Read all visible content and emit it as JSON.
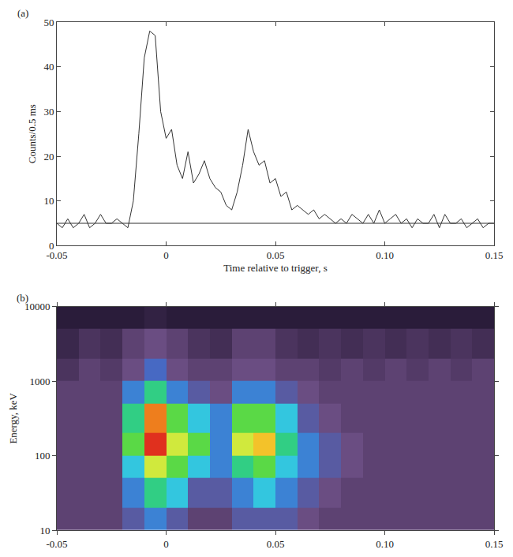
{
  "chart_data": [
    {
      "type": "line",
      "panel_label": "(a)",
      "x_label": "Time relative to trigger, s",
      "y_label": "Counts/0.5 ms",
      "xlim": [
        -0.05,
        0.15
      ],
      "ylim": [
        0,
        50
      ],
      "xticks": [
        -0.05,
        0,
        0.05,
        {
          "value": 0.1,
          "label": "0.10"
        },
        0.15
      ],
      "yticks": [
        0,
        10,
        20,
        30,
        40,
        50
      ],
      "series": [
        {
          "color": "#333333",
          "x": [
            -0.05,
            -0.0475,
            -0.045,
            -0.0425,
            -0.04,
            -0.0375,
            -0.035,
            -0.0325,
            -0.03,
            -0.0275,
            -0.025,
            -0.0225,
            -0.02,
            -0.0175,
            -0.015,
            -0.0125,
            -0.01,
            -0.0075,
            -0.005,
            -0.0025,
            0,
            0.0025,
            0.005,
            0.0075,
            0.01,
            0.0125,
            0.015,
            0.0175,
            0.02,
            0.0225,
            0.025,
            0.0275,
            0.03,
            0.0325,
            0.035,
            0.0375,
            0.04,
            0.0425,
            0.045,
            0.0475,
            0.05,
            0.0525,
            0.055,
            0.0575,
            0.06,
            0.0625,
            0.065,
            0.0675,
            0.07,
            0.0725,
            0.075,
            0.0775,
            0.08,
            0.0825,
            0.085,
            0.0875,
            0.09,
            0.0925,
            0.095,
            0.0975,
            0.1,
            0.1025,
            0.105,
            0.1075,
            0.11,
            0.1125,
            0.115,
            0.1175,
            0.12,
            0.1225,
            0.125,
            0.1275,
            0.13,
            0.1325,
            0.135,
            0.1375,
            0.14,
            0.1425,
            0.145,
            0.1475,
            0.15
          ],
          "values": [
            5,
            4,
            6,
            4,
            5,
            7,
            4,
            5,
            7,
            5,
            5,
            6,
            5,
            4,
            10,
            25,
            42,
            48,
            47,
            30,
            24,
            26,
            18,
            15,
            21,
            14,
            16,
            19,
            15,
            13,
            12,
            9,
            8,
            12,
            18,
            26,
            21,
            18,
            19,
            14,
            15,
            11,
            12,
            8,
            9,
            8,
            7,
            8,
            6,
            7,
            6,
            5,
            6,
            5,
            7,
            6,
            5,
            7,
            5,
            8,
            5,
            6,
            7,
            5,
            6,
            4,
            6,
            5,
            5,
            7,
            4,
            7,
            5,
            5,
            6,
            4,
            5,
            6,
            4,
            5,
            5
          ]
        },
        {
          "color": "#333333",
          "x": [
            -0.05,
            0.15
          ],
          "values": [
            5,
            5
          ]
        }
      ]
    },
    {
      "type": "heatmap",
      "panel_label": "(b)",
      "y_label": "Energy, keV",
      "log": "y",
      "xlim": [
        -0.05,
        0.15
      ],
      "ylim": [
        10,
        10000
      ],
      "xticks": [
        -0.05,
        0,
        0.05,
        {
          "value": 0.1,
          "label": "0.10"
        },
        0.15
      ],
      "yticks": [
        10,
        100,
        1000,
        10000
      ],
      "x_edges": [
        -0.05,
        -0.04,
        -0.03,
        -0.02,
        -0.01,
        0,
        0.01,
        0.02,
        0.03,
        0.04,
        0.05,
        0.06,
        0.07,
        0.08,
        0.09,
        0.1,
        0.11,
        0.12,
        0.13,
        0.14,
        0.15
      ],
      "y_edges": [
        10,
        20,
        50,
        100,
        200,
        500,
        1000,
        2000,
        5000,
        10000
      ],
      "z": [
        [
          1,
          1,
          1,
          2,
          3,
          2,
          1,
          1,
          2,
          2,
          2,
          1.5,
          1,
          1,
          1,
          1,
          1,
          1,
          1,
          1
        ],
        [
          1,
          1,
          1,
          3,
          5,
          4,
          2,
          2,
          3,
          4,
          3,
          2,
          1.5,
          1,
          1,
          1,
          1,
          1,
          1,
          1
        ],
        [
          1,
          1,
          1,
          4,
          7,
          6,
          4,
          3,
          5,
          6,
          4,
          3,
          2,
          1.5,
          1,
          1,
          1,
          1,
          1,
          1
        ],
        [
          1,
          1,
          1,
          6,
          10,
          7,
          6,
          3,
          7,
          8,
          5,
          3,
          2,
          1.5,
          1,
          1,
          1,
          1,
          1,
          1
        ],
        [
          1,
          1,
          1,
          5,
          9,
          6,
          4,
          3,
          6,
          6,
          4,
          2,
          1.5,
          1,
          1,
          1,
          1,
          1,
          1,
          1
        ],
        [
          1,
          1,
          1,
          3,
          5,
          3,
          2,
          1.5,
          3,
          3,
          2,
          1.5,
          1,
          1,
          1,
          1,
          1,
          1,
          1,
          1
        ],
        [
          0.7,
          1,
          0.8,
          1.5,
          2.5,
          1.5,
          1,
          1,
          1.5,
          1.5,
          1,
          1,
          0.8,
          1,
          0.8,
          1,
          0.8,
          1,
          0.8,
          1
        ],
        [
          0.5,
          0.7,
          0.6,
          1,
          1.5,
          1,
          0.7,
          0.6,
          1,
          1,
          0.7,
          0.6,
          0.7,
          0.6,
          0.7,
          0.6,
          0.7,
          0.6,
          0.7,
          0.6
        ],
        [
          0.3,
          0.3,
          0.3,
          0.3,
          0.4,
          0.3,
          0.3,
          0.3,
          0.3,
          0.3,
          0.3,
          0.3,
          0.3,
          0.3,
          0.3,
          0.3,
          0.3,
          0.3,
          0.3,
          0.3
        ]
      ]
    }
  ]
}
